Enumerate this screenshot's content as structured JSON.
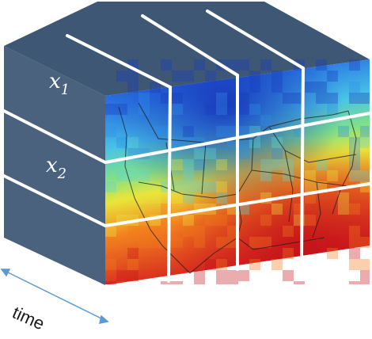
{
  "labels": {
    "x1": "x",
    "x1_sub": "1",
    "x2": "x",
    "x2_sub": "2",
    "time": "time"
  },
  "colors": {
    "face_top": "#3b5573",
    "face_side": "#48607c",
    "edge_lines": "#ffffff",
    "arrow": "#5b9bd5",
    "cold": "#1f4fd6",
    "hot": "#d81e1e"
  }
}
